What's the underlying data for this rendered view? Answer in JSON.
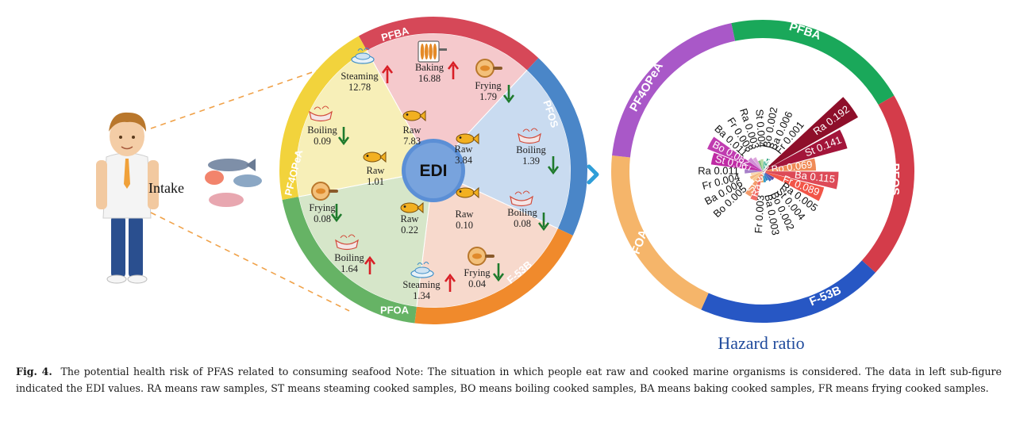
{
  "left": {
    "center_label": "EDI",
    "intake_label": "Intake",
    "ring_sectors": [
      {
        "name": "PFBA",
        "color": "#d64858"
      },
      {
        "name": "PFOS",
        "color": "#4a86c8"
      },
      {
        "name": "F-53B",
        "color": "#f08a2c"
      },
      {
        "name": "PFOA",
        "color": "#66b365"
      },
      {
        "name": "PF4OPeA",
        "color": "#f2d33c"
      }
    ],
    "pie_colors": {
      "PFBA": "#f5c9cc",
      "PFOS": "#c9dbf0",
      "F-53B": "#f7d9cc",
      "PFOA": "#d6e6c9",
      "PF4OPeA": "#f7efb8"
    },
    "entries": [
      {
        "method": "Steaming",
        "value": "12.78",
        "trend": "up",
        "icon": "steaming-fish-icon"
      },
      {
        "method": "Baking",
        "value": "16.88",
        "trend": "up",
        "icon": "baking-skewer-icon"
      },
      {
        "method": "Raw",
        "value": "7.83",
        "trend": "none",
        "icon": "fish-icon"
      },
      {
        "method": "Frying",
        "value": "1.79",
        "trend": "down",
        "icon": "frying-pan-icon"
      },
      {
        "method": "Raw",
        "value": "3.84",
        "trend": "none",
        "icon": "fish-icon"
      },
      {
        "method": "Boiling",
        "value": "1.39",
        "trend": "down",
        "icon": "boiling-pot-icon"
      },
      {
        "method": "Raw",
        "value": "0.10",
        "trend": "none",
        "icon": "fish-icon"
      },
      {
        "method": "Boiling",
        "value": "0.08",
        "trend": "down",
        "icon": "boiling-pot-icon"
      },
      {
        "method": "Frying",
        "value": "0.04",
        "trend": "down",
        "icon": "frying-pan-icon"
      },
      {
        "method": "Raw",
        "value": "0.22",
        "trend": "none",
        "icon": "fish-icon"
      },
      {
        "method": "Boiling",
        "value": "1.64",
        "trend": "up",
        "icon": "boiling-pot-icon"
      },
      {
        "method": "Steaming",
        "value": "1.34",
        "trend": "up",
        "icon": "steaming-fish-icon"
      },
      {
        "method": "Boiling",
        "value": "0.09",
        "trend": "down",
        "icon": "boiling-pot-icon"
      },
      {
        "method": "Raw",
        "value": "1.01",
        "trend": "none",
        "icon": "fish-icon"
      },
      {
        "method": "Frying",
        "value": "0.08",
        "trend": "down",
        "icon": "frying-pan-icon"
      }
    ],
    "trend_colors": {
      "up": "#d81f26",
      "down": "#1e7a2c"
    }
  },
  "right": {
    "title": "Hazard ratio",
    "ring_sectors": [
      {
        "name": "PFBA",
        "color": "#1aa85a"
      },
      {
        "name": "PFOS",
        "color": "#d43c4a"
      },
      {
        "name": "F-53B",
        "color": "#2757c4"
      },
      {
        "name": "PFOA",
        "color": "#f5b56a"
      },
      {
        "name": "PF4OPeA",
        "color": "#a958c8"
      }
    ],
    "bars": [
      {
        "label": "Ba 0.006",
        "group": "PFBA",
        "value": 0.006,
        "color": "#3aa98b"
      },
      {
        "label": "Fr 0.001",
        "group": "PFBA",
        "value": 0.001,
        "color": "#b7e2c8"
      },
      {
        "label": "Ra 0.192",
        "group": "PFOS",
        "value": 0.192,
        "color": "#8e0f2a"
      },
      {
        "label": "St 0.141",
        "group": "PFOS",
        "value": 0.141,
        "color": "#a3153a"
      },
      {
        "label": "Bo 0.069",
        "group": "PFOS",
        "value": 0.069,
        "color": "#f08b57"
      },
      {
        "label": "Ba 0.115",
        "group": "PFOS",
        "value": 0.115,
        "color": "#dd4a57"
      },
      {
        "label": "Fr 0.089",
        "group": "PFOS",
        "value": 0.089,
        "color": "#f25548"
      },
      {
        "label": "Ra 0.005",
        "group": "F-53B",
        "value": 0.005,
        "color": "#5a4fa6"
      },
      {
        "label": "St 0.004",
        "group": "F-53B",
        "value": 0.004,
        "color": "#3f6cbf"
      },
      {
        "label": "Bo 0.002",
        "group": "F-53B",
        "value": 0.002,
        "color": "#2a7fc0"
      },
      {
        "label": "Ba 0.003",
        "group": "F-53B",
        "value": 0.003,
        "color": "#2d9ac8"
      },
      {
        "label": "Fr 0.003",
        "group": "PFOA",
        "value": 0.003,
        "color": "#f0a560"
      },
      {
        "label": "Ra 0.028",
        "group": "PFOA",
        "value": 0.028,
        "color": "#ef6d66"
      },
      {
        "label": "St 0.025",
        "group": "PFOA",
        "value": 0.025,
        "color": "#f39a6a"
      },
      {
        "label": "Bo 0.005",
        "group": "PFOA",
        "value": 0.005,
        "color": "#f7c98f"
      },
      {
        "label": "Ba 0.006",
        "group": "PFOA",
        "value": 0.006,
        "color": "#f5b880"
      },
      {
        "label": "Fr 0.004",
        "group": "PFOA",
        "value": 0.004,
        "color": "#f8d9b0"
      },
      {
        "label": "Ra 0.011",
        "group": "PF4OPeA",
        "value": 0.011,
        "color": "#a77fc9"
      },
      {
        "label": "St 0.067",
        "group": "PF4OPeA",
        "value": 0.067,
        "color": "#bf2aa4"
      },
      {
        "label": "Bo 0.082",
        "group": "PF4OPeA",
        "value": 0.082,
        "color": "#c03cb0"
      },
      {
        "label": "Ba 0.011",
        "group": "PF4OPeA",
        "value": 0.011,
        "color": "#cf8fd6"
      },
      {
        "label": "Fr 0.008",
        "group": "PF4OPeA",
        "value": 0.008,
        "color": "#dca6db"
      },
      {
        "label": "Ra 0.003",
        "group": "PFBA",
        "value": 0.003,
        "color": "#7fbf7a"
      },
      {
        "label": "St 0.004",
        "group": "PFBA",
        "value": 0.004,
        "color": "#b9dba2"
      },
      {
        "label": "Bo 0.002",
        "group": "PFBA",
        "value": 0.002,
        "color": "#6fc3b0"
      }
    ]
  },
  "caption": {
    "fig_label": "Fig. 4.",
    "text": "The potential health risk of PFAS related to consuming seafood Note: The situation in which people eat raw and cooked marine organisms is considered. The data in left sub-figure indicated the EDI values. RA means raw samples, ST means steaming cooked samples, BO means boiling cooked samples, BA means baking cooked samples, FR means frying cooked samples."
  }
}
